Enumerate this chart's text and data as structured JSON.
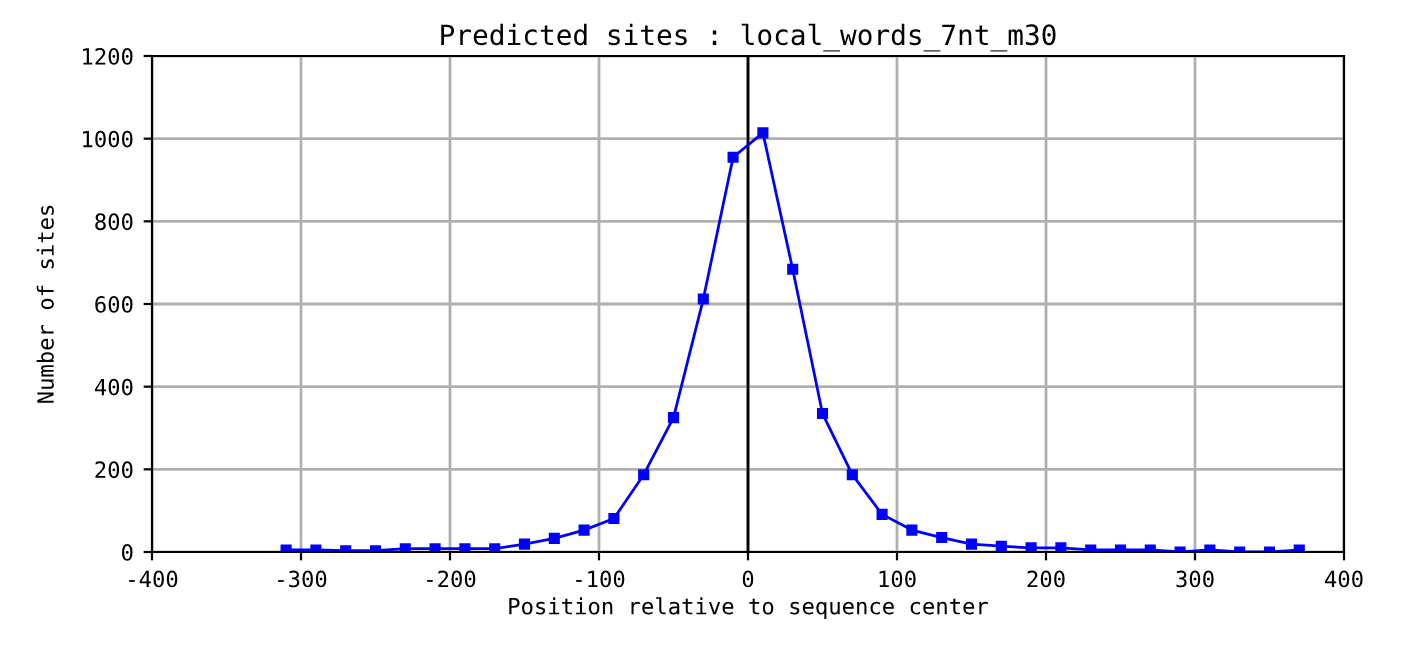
{
  "chart_data": {
    "type": "line",
    "title": "Predicted sites : local_words_7nt_m30",
    "xlabel": "Position relative to sequence center",
    "ylabel": "Number of sites",
    "x": [
      -310,
      -290,
      -270,
      -250,
      -230,
      -210,
      -190,
      -170,
      -150,
      -130,
      -110,
      -90,
      -70,
      -50,
      -30,
      -10,
      10,
      30,
      50,
      70,
      90,
      110,
      130,
      150,
      170,
      190,
      210,
      230,
      250,
      270,
      290,
      310,
      330,
      350,
      370
    ],
    "series": [
      {
        "color": "#0000ff",
        "values": [
          5,
          5,
          3,
          3,
          8,
          8,
          8,
          8,
          19,
          33,
          53,
          81,
          187,
          325,
          612,
          955,
          1014,
          684,
          335,
          187,
          91,
          53,
          35,
          19,
          14,
          10,
          10,
          5,
          5,
          5,
          0,
          5,
          0,
          0,
          5
        ]
      }
    ],
    "xlim": [
      -400,
      400
    ],
    "xticks": [
      -400,
      -300,
      -200,
      -100,
      0,
      100,
      200,
      300,
      400
    ],
    "ylim": [
      0,
      1200
    ],
    "yticks": [
      0,
      200,
      400,
      600,
      800,
      1000,
      1200
    ],
    "ref_lines": [
      {
        "axis": "x",
        "value": 0,
        "color": "#000000"
      }
    ],
    "grid": true,
    "marker": "square",
    "line_style": "solid",
    "legend": false
  }
}
